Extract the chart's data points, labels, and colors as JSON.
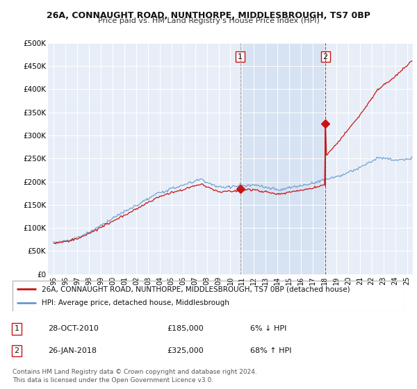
{
  "title": "26A, CONNAUGHT ROAD, NUNTHORPE, MIDDLESBROUGH, TS7 0BP",
  "subtitle": "Price paid vs. HM Land Registry's House Price Index (HPI)",
  "background_color": "#ffffff",
  "plot_bg_color": "#e8eef8",
  "hpi_color": "#6699cc",
  "price_color": "#cc1111",
  "vline1_color": "#999999",
  "vline2_color": "#cc1111",
  "sale1_date_num": 2010.83,
  "sale1_price": 185000,
  "sale2_date_num": 2018.07,
  "sale2_price": 325000,
  "ylim": [
    0,
    500000
  ],
  "xlim_start": 1994.5,
  "xlim_end": 2025.5,
  "ylabel_ticks": [
    0,
    50000,
    100000,
    150000,
    200000,
    250000,
    300000,
    350000,
    400000,
    450000,
    500000
  ],
  "ytick_labels": [
    "£0",
    "£50K",
    "£100K",
    "£150K",
    "£200K",
    "£250K",
    "£300K",
    "£350K",
    "£400K",
    "£450K",
    "£500K"
  ],
  "xtick_years": [
    1995,
    1996,
    1997,
    1998,
    1999,
    2000,
    2001,
    2002,
    2003,
    2004,
    2005,
    2006,
    2007,
    2008,
    2009,
    2010,
    2011,
    2012,
    2013,
    2014,
    2015,
    2016,
    2017,
    2018,
    2019,
    2020,
    2021,
    2022,
    2023,
    2024,
    2025
  ],
  "legend1_label": "26A, CONNAUGHT ROAD, NUNTHORPE, MIDDLESBROUGH, TS7 0BP (detached house)",
  "legend2_label": "HPI: Average price, detached house, Middlesbrough",
  "table_rows": [
    {
      "num": "1",
      "date": "28-OCT-2010",
      "price": "£185,000",
      "change": "6% ↓ HPI"
    },
    {
      "num": "2",
      "date": "26-JAN-2018",
      "price": "£325,000",
      "change": "68% ↑ HPI"
    }
  ],
  "footnote": "Contains HM Land Registry data © Crown copyright and database right 2024.\nThis data is licensed under the Open Government Licence v3.0."
}
